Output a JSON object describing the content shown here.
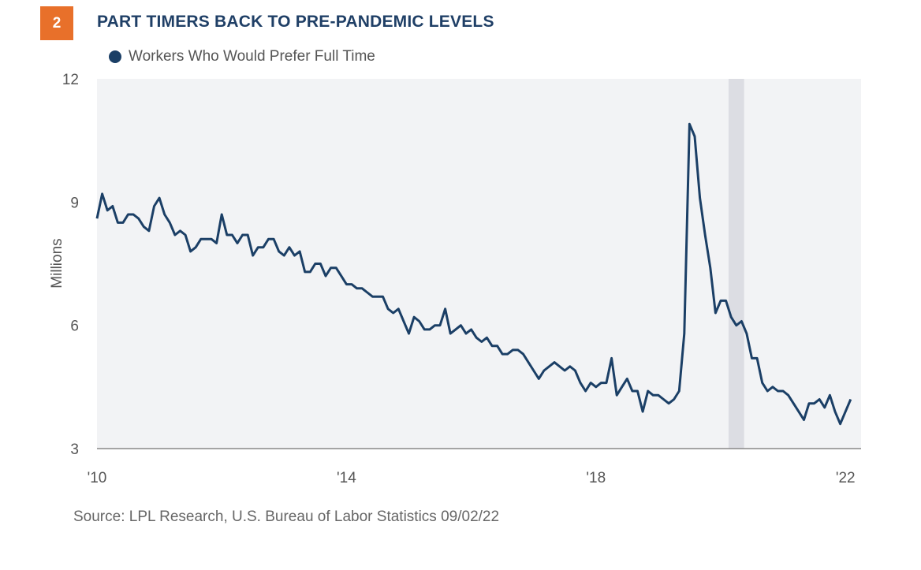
{
  "badge": "2",
  "title": "PART TIMERS BACK TO PRE-PANDEMIC LEVELS",
  "source": "Source: LPL Research, U.S. Bureau of Labor Statistics  09/02/22",
  "colors": {
    "badge": "#e8702a",
    "title": "#1f3f66",
    "line": "#1b3f66",
    "plot_bg": "#f2f3f5",
    "recession": "#dcdde3"
  },
  "chart_data": {
    "type": "line",
    "title": "PART TIMERS BACK TO PRE-PANDEMIC LEVELS",
    "xlabel": "",
    "ylabel": "Millions",
    "ylim": [
      3,
      12
    ],
    "xlim": [
      2010.0,
      2022.25
    ],
    "yticks": [
      "3",
      "6",
      "9",
      "12"
    ],
    "xticks": [
      {
        "value": 2010,
        "label": "'10"
      },
      {
        "value": 2014,
        "label": "'14"
      },
      {
        "value": 2018,
        "label": "'18"
      },
      {
        "value": 2022,
        "label": "'22"
      }
    ],
    "recession": [
      2020.125,
      2020.375
    ],
    "grid": false,
    "legend": "top-left",
    "series": [
      {
        "name": "Workers Who Would Prefer Full Time",
        "start": 2010.0,
        "step": 0.08333,
        "values": [
          8.6,
          9.2,
          8.8,
          8.9,
          8.5,
          8.5,
          8.7,
          8.7,
          8.6,
          8.4,
          8.3,
          8.9,
          9.1,
          8.7,
          8.5,
          8.2,
          8.3,
          8.2,
          7.8,
          7.9,
          8.1,
          8.1,
          8.1,
          8.0,
          8.7,
          8.2,
          8.2,
          8.0,
          8.2,
          8.2,
          7.7,
          7.9,
          7.9,
          8.1,
          8.1,
          7.8,
          7.7,
          7.9,
          7.7,
          7.8,
          7.3,
          7.3,
          7.5,
          7.5,
          7.2,
          7.4,
          7.4,
          7.2,
          7.0,
          7.0,
          6.9,
          6.9,
          6.8,
          6.7,
          6.7,
          6.7,
          6.4,
          6.3,
          6.4,
          6.1,
          5.8,
          6.2,
          6.1,
          5.9,
          5.9,
          6.0,
          6.0,
          6.4,
          5.8,
          5.9,
          6.0,
          5.8,
          5.9,
          5.7,
          5.6,
          5.7,
          5.5,
          5.5,
          5.3,
          5.3,
          5.4,
          5.4,
          5.3,
          5.1,
          4.9,
          4.7,
          4.9,
          5.0,
          5.1,
          5.0,
          4.9,
          5.0,
          4.9,
          4.6,
          4.4,
          4.6,
          4.5,
          4.6,
          4.6,
          5.2,
          4.3,
          4.5,
          4.7,
          4.4,
          4.4,
          3.9,
          4.4,
          4.3,
          4.3,
          4.2,
          4.1,
          4.2,
          4.4,
          5.8,
          10.9,
          10.6,
          9.1,
          8.2,
          7.4,
          6.3,
          6.6,
          6.6,
          6.2,
          6.0,
          6.1,
          5.8,
          5.2,
          5.2,
          4.6,
          4.4,
          4.5,
          4.4,
          4.4,
          4.3,
          4.1,
          3.9,
          3.7,
          4.1,
          4.1,
          4.2,
          4.0,
          4.3,
          3.9,
          3.6,
          3.9,
          4.2
        ]
      }
    ]
  }
}
